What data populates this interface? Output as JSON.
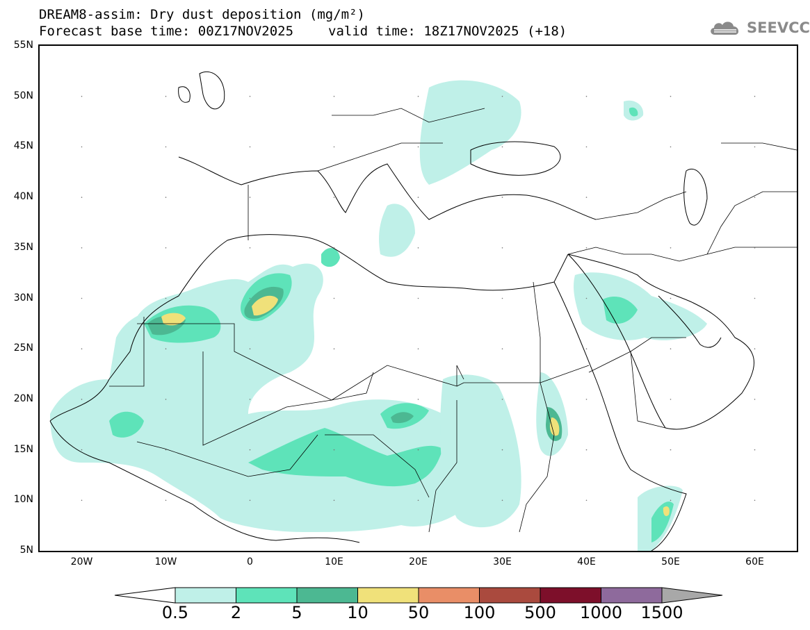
{
  "header": {
    "title_line1": "DREAM8-assim: Dry dust deposition (mg/m²)",
    "base_time": "Forecast base time: 00Z17NOV2025",
    "valid_time": "valid time: 18Z17NOV2025 (+18)"
  },
  "logo": {
    "text": "SEEVCCC",
    "icon": "cloud-logo-icon"
  },
  "map": {
    "lon_range": [
      -25,
      65
    ],
    "lat_range": [
      5,
      55
    ],
    "lat_labels": [
      "55N",
      "50N",
      "45N",
      "40N",
      "35N",
      "30N",
      "25N",
      "20N",
      "15N",
      "10N",
      "5N"
    ],
    "lon_labels": [
      "20W",
      "10W",
      "0",
      "10E",
      "20E",
      "30E",
      "40E",
      "50E",
      "60E"
    ]
  },
  "colorbar": {
    "labels": [
      "0.5",
      "2",
      "5",
      "10",
      "50",
      "100",
      "500",
      "1000",
      "1500"
    ],
    "colors": [
      "#ffffff",
      "#bff0e8",
      "#5ee3b9",
      "#4cb892",
      "#f0e17a",
      "#e98e67",
      "#aa4a3e",
      "#7d0f2a",
      "#8e6a9c",
      "#a8a8a8"
    ]
  }
}
